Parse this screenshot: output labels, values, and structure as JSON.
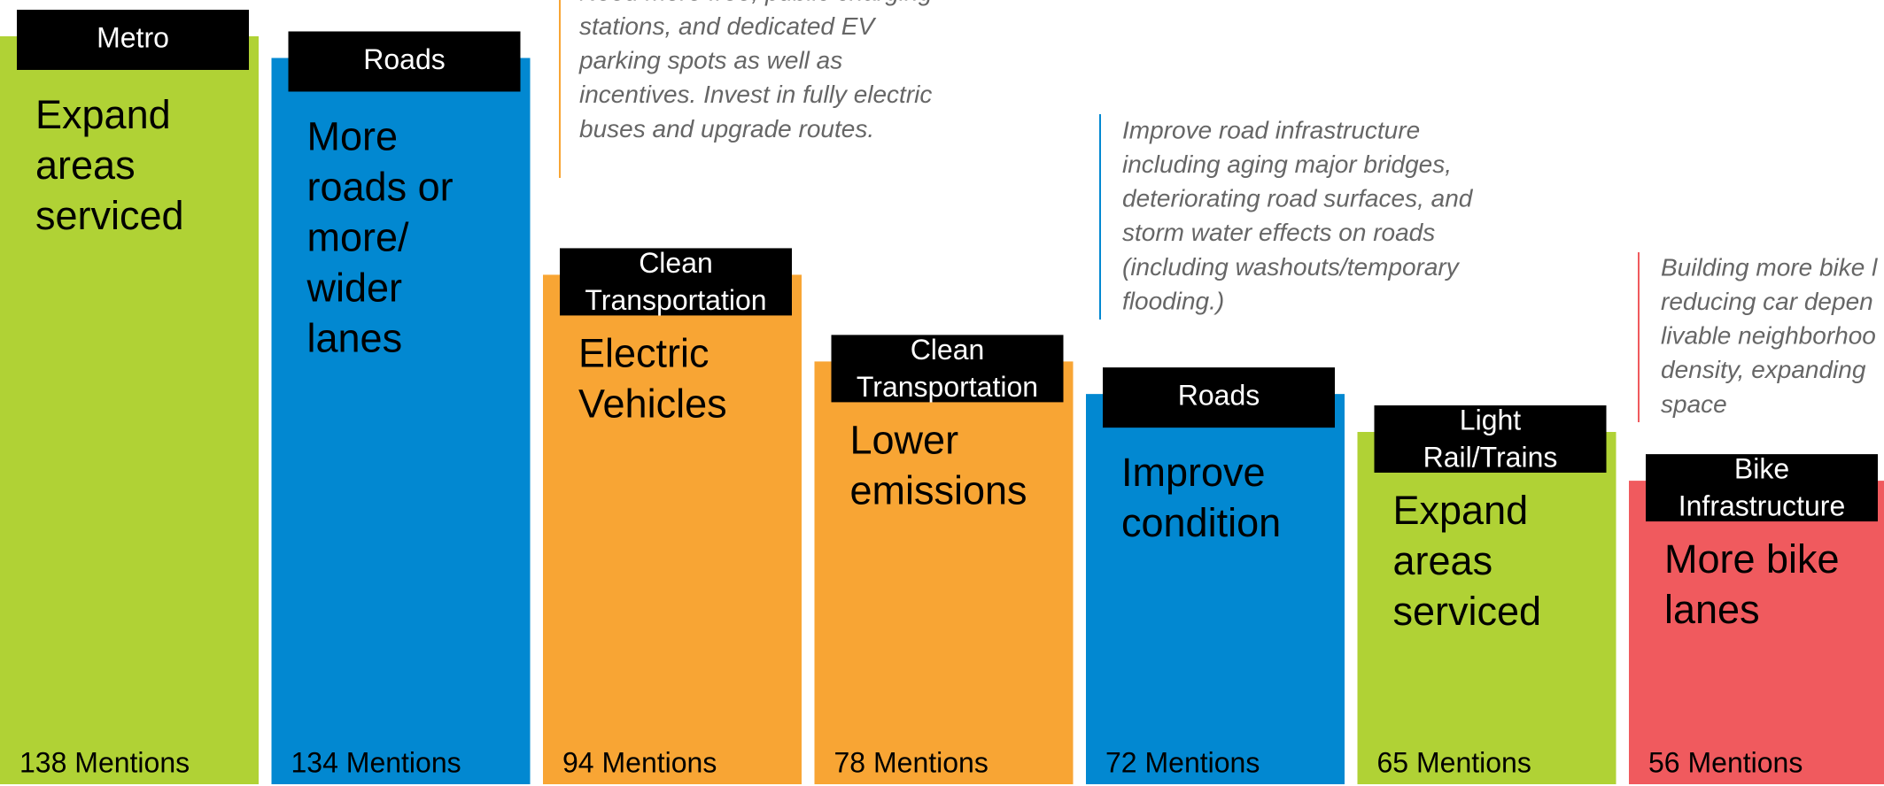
{
  "chart_data": {
    "type": "bar",
    "categories": [
      [
        "Metro"
      ],
      [
        "Roads"
      ],
      [
        "Clean",
        "Transportation"
      ],
      [
        "Clean",
        "Transportation"
      ],
      [
        "Roads"
      ],
      [
        "Light",
        "Rail/Trains"
      ],
      [
        "Bike",
        "Infrastructure"
      ]
    ],
    "descriptions": [
      [
        "Expand",
        "areas",
        "serviced"
      ],
      [
        "More",
        "roads or",
        "more/",
        "wider",
        "lanes"
      ],
      [
        "Electric",
        "Vehicles"
      ],
      [
        "Lower",
        "emissions"
      ],
      [
        "Improve",
        "condition"
      ],
      [
        "Expand",
        "areas",
        "serviced"
      ],
      [
        "More bike",
        "lanes"
      ]
    ],
    "values": [
      138,
      134,
      94,
      78,
      72,
      65,
      56
    ],
    "value_labels": [
      "138 Mentions",
      "134 Mentions",
      "94 Mentions",
      "78 Mentions",
      "72 Mentions",
      "65 Mentions",
      "56 Mentions"
    ],
    "colors": [
      "#b0d235",
      "#0288d1",
      "#f8a534",
      "#f8a534",
      "#0288d1",
      "#b0d235",
      "#f05a5e"
    ],
    "annotations": [
      {
        "color": "#f8a534",
        "lines": [
          "Need more free, public charging",
          "stations, and dedicated EV",
          "parking spots as well as",
          "incentives. Invest in fully electric",
          "buses and upgrade routes."
        ]
      },
      {
        "color": "#0288d1",
        "lines": [
          "Improve road infrastructure",
          "including aging major bridges,",
          "deteriorating road surfaces, and",
          "storm water effects on roads",
          "(including washouts/temporary",
          "flooding.)"
        ]
      },
      {
        "color": "#f05a5e",
        "lines": [
          "Building more bike l",
          "reducing car depen",
          "livable neighborhoo",
          "density, expanding",
          "space"
        ]
      }
    ]
  }
}
